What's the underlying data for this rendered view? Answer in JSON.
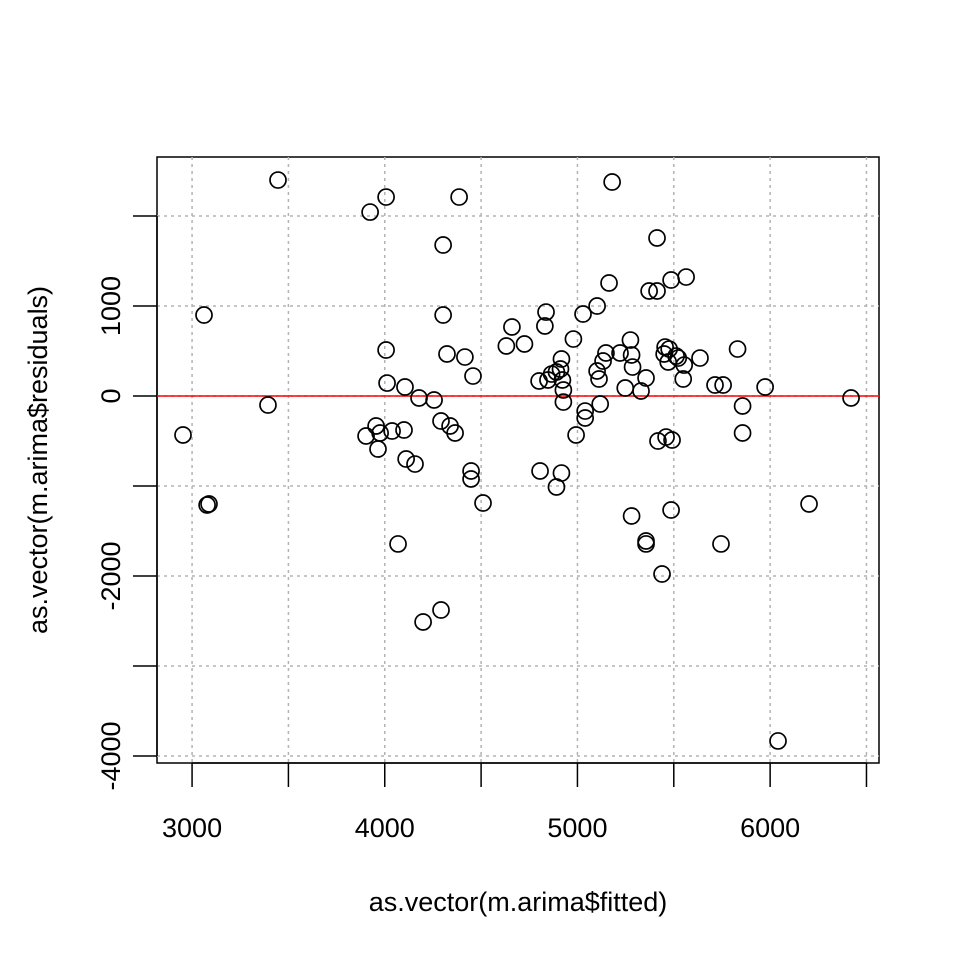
{
  "chart_data": {
    "type": "scatter",
    "x_label": "as.vector(m.arima$fitted)",
    "y_label": "as.vector(m.arima$residuals)",
    "color": "#000000",
    "grid": true,
    "hline": {
      "value": 0,
      "color": "#ff0000"
    },
    "xlim": [
      2818,
      6565
    ],
    "ylim": [
      -4078,
      2656
    ],
    "xticks": [
      3000,
      {
        "value": 3500,
        "label": null
      },
      4000,
      {
        "value": 4500,
        "label": null
      },
      5000,
      {
        "value": 5500,
        "label": null
      },
      6000,
      {
        "value": 6500,
        "label": null
      }
    ],
    "yticks": [
      -4000,
      {
        "value": -3000,
        "label": null
      },
      -2000,
      {
        "value": -1000,
        "label": null
      },
      0,
      1000,
      {
        "value": 2000,
        "label": null
      }
    ],
    "x": [
      3446,
      5180,
      4007,
      4386,
      3924,
      4303,
      5413,
      5564,
      5486,
      5164,
      5413,
      5372,
      5102,
      3062,
      4303,
      4837,
      5029,
      4660,
      4831,
      5275,
      4979,
      4725,
      4631,
      4007,
      4323,
      4416,
      5148,
      5221,
      5455,
      5476,
      5281,
      5831,
      5636,
      5512,
      5523,
      4917,
      5450,
      5133,
      5554,
      5471,
      5286,
      4912,
      5102,
      4866,
      4891,
      5112,
      4458,
      5356,
      5549,
      4847,
      4801,
      4922,
      4012,
      4105,
      5248,
      5330,
      5714,
      5756,
      5974,
      4927,
      4178,
      4927,
      6420,
      3394,
      5118,
      5857,
      4256,
      5040,
      5040,
      4292,
      4339,
      4365,
      3955,
      4100,
      4038,
      3976,
      3903,
      2953,
      4993,
      5857,
      5418,
      5460,
      5491,
      3965,
      4111,
      4157,
      4448,
      4448,
      4806,
      4917,
      4891,
      3088,
      3078,
      4510,
      6202,
      5486,
      5281,
      5356,
      5356,
      5745,
      4069,
      5439,
      4292,
      4199,
      6041
    ],
    "values": [
      2400,
      2378,
      2211,
      2211,
      2044,
      1678,
      1756,
      1322,
      1289,
      1256,
      1167,
      1167,
      1000,
      900,
      900,
      933,
      911,
      767,
      778,
      622,
      633,
      578,
      556,
      511,
      467,
      433,
      478,
      478,
      544,
      522,
      456,
      522,
      422,
      444,
      422,
      411,
      467,
      389,
      344,
      378,
      322,
      300,
      278,
      244,
      267,
      189,
      222,
      200,
      189,
      178,
      167,
      178,
      144,
      100,
      89,
      56,
      122,
      122,
      100,
      67,
      -22,
      -67,
      -22,
      -100,
      -89,
      -111,
      -44,
      -167,
      -244,
      -278,
      -333,
      -411,
      -333,
      -378,
      -389,
      -411,
      -444,
      -433,
      -433,
      -411,
      -500,
      -456,
      -489,
      -589,
      -700,
      -756,
      -833,
      -922,
      -833,
      -856,
      -1011,
      -1200,
      -1211,
      -1189,
      -1200,
      -1267,
      -1333,
      -1611,
      -1644,
      -1644,
      -1644,
      -1978,
      -2378,
      -2511,
      -3833
    ]
  }
}
